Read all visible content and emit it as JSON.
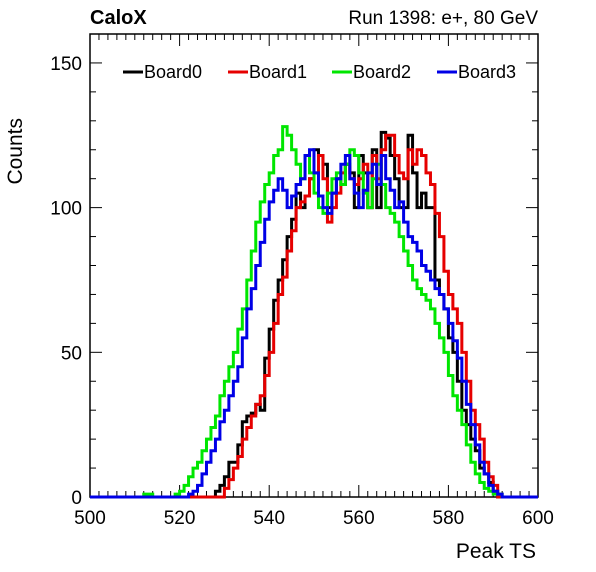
{
  "header": {
    "left": "CaloX",
    "right": "Run 1398: e+, 80 GeV"
  },
  "colors": {
    "Board0": "#000000",
    "Board1": "#e60000",
    "Board2": "#00e600",
    "Board3": "#0000e6"
  },
  "chart_data": {
    "type": "line",
    "title": "",
    "xlabel": "Peak TS",
    "ylabel": "Counts",
    "xlim": [
      500,
      600
    ],
    "ylim": [
      0,
      160
    ],
    "xticks": [
      500,
      520,
      540,
      560,
      580,
      600
    ],
    "yticks": [
      0,
      50,
      100,
      150
    ],
    "grid": false,
    "legend_position": "top",
    "x": [
      500,
      501,
      502,
      503,
      504,
      505,
      506,
      507,
      508,
      509,
      510,
      511,
      512,
      513,
      514,
      515,
      516,
      517,
      518,
      519,
      520,
      521,
      522,
      523,
      524,
      525,
      526,
      527,
      528,
      529,
      530,
      531,
      532,
      533,
      534,
      535,
      536,
      537,
      538,
      539,
      540,
      541,
      542,
      543,
      544,
      545,
      546,
      547,
      548,
      549,
      550,
      551,
      552,
      553,
      554,
      555,
      556,
      557,
      558,
      559,
      560,
      561,
      562,
      563,
      564,
      565,
      566,
      567,
      568,
      569,
      570,
      571,
      572,
      573,
      574,
      575,
      576,
      577,
      578,
      579,
      580,
      581,
      582,
      583,
      584,
      585,
      586,
      587,
      588,
      589,
      590,
      591,
      592,
      593,
      594,
      595,
      596,
      597,
      598,
      599
    ],
    "series": [
      {
        "name": "Board0",
        "values": [
          0,
          0,
          0,
          0,
          0,
          0,
          0,
          0,
          0,
          0,
          0,
          0,
          0,
          0,
          0,
          0,
          0,
          0,
          0,
          0,
          0,
          0,
          0,
          0,
          0,
          0,
          0,
          0,
          2,
          4,
          7,
          12,
          12,
          18,
          26,
          28,
          29,
          32,
          30,
          48,
          58,
          68,
          75,
          82,
          90,
          96,
          105,
          100,
          104,
          110,
          120,
          118,
          115,
          100,
          105,
          110,
          108,
          115,
          112,
          100,
          118,
          112,
          100,
          120,
          100,
          126,
          124,
          118,
          110,
          100,
          100,
          125,
          112,
          100,
          105,
          100,
          100,
          75,
          70,
          65,
          55,
          50,
          40,
          30,
          25,
          20,
          16,
          10,
          8,
          5,
          2,
          0,
          0,
          0,
          0,
          0,
          0,
          0,
          0,
          0
        ]
      },
      {
        "name": "Board1",
        "values": [
          0,
          0,
          0,
          0,
          0,
          0,
          0,
          0,
          0,
          0,
          0,
          0,
          0,
          0,
          0,
          0,
          0,
          0,
          0,
          0,
          0,
          0,
          0,
          0,
          0,
          0,
          0,
          0,
          0,
          0,
          3,
          6,
          10,
          14,
          20,
          24,
          28,
          32,
          35,
          42,
          50,
          60,
          70,
          76,
          85,
          92,
          100,
          102,
          104,
          110,
          112,
          118,
          110,
          95,
          100,
          105,
          112,
          115,
          110,
          108,
          110,
          115,
          100,
          118,
          110,
          120,
          125,
          125,
          118,
          112,
          110,
          120,
          115,
          120,
          118,
          112,
          108,
          98,
          90,
          78,
          70,
          65,
          60,
          50,
          40,
          30,
          25,
          20,
          12,
          7,
          4,
          0,
          0,
          0,
          0,
          0,
          0,
          0,
          0,
          0
        ]
      },
      {
        "name": "Board2",
        "values": [
          0,
          0,
          0,
          0,
          0,
          0,
          0,
          0,
          0,
          0,
          0,
          0,
          1,
          1,
          0,
          0,
          0,
          0,
          0,
          1,
          2,
          4,
          7,
          10,
          12,
          16,
          20,
          24,
          28,
          35,
          40,
          45,
          50,
          58,
          65,
          75,
          85,
          95,
          102,
          108,
          112,
          118,
          120,
          128,
          125,
          120,
          115,
          110,
          118,
          112,
          105,
          100,
          98,
          105,
          110,
          112,
          108,
          115,
          120,
          118,
          112,
          105,
          100,
          110,
          115,
          108,
          100,
          98,
          95,
          90,
          85,
          80,
          75,
          72,
          70,
          68,
          65,
          60,
          55,
          50,
          42,
          35,
          30,
          25,
          18,
          12,
          8,
          5,
          3,
          2,
          1,
          1,
          0,
          0,
          0,
          0,
          0,
          0,
          0,
          0
        ]
      },
      {
        "name": "Board3",
        "values": [
          0,
          0,
          0,
          0,
          0,
          0,
          0,
          0,
          0,
          0,
          0,
          0,
          0,
          0,
          0,
          0,
          0,
          0,
          0,
          0,
          0,
          0,
          1,
          2,
          4,
          8,
          12,
          16,
          20,
          26,
          30,
          35,
          40,
          45,
          55,
          65,
          72,
          80,
          88,
          96,
          102,
          106,
          110,
          106,
          100,
          104,
          108,
          110,
          118,
          120,
          112,
          104,
          100,
          98,
          105,
          110,
          115,
          118,
          110,
          105,
          100,
          106,
          112,
          115,
          108,
          118,
          110,
          106,
          100,
          102,
          95,
          90,
          88,
          85,
          80,
          78,
          75,
          72,
          70,
          65,
          60,
          54,
          48,
          40,
          32,
          25,
          18,
          12,
          8,
          4,
          2,
          1,
          0,
          0,
          0,
          0,
          0,
          0,
          0,
          0
        ]
      }
    ]
  }
}
